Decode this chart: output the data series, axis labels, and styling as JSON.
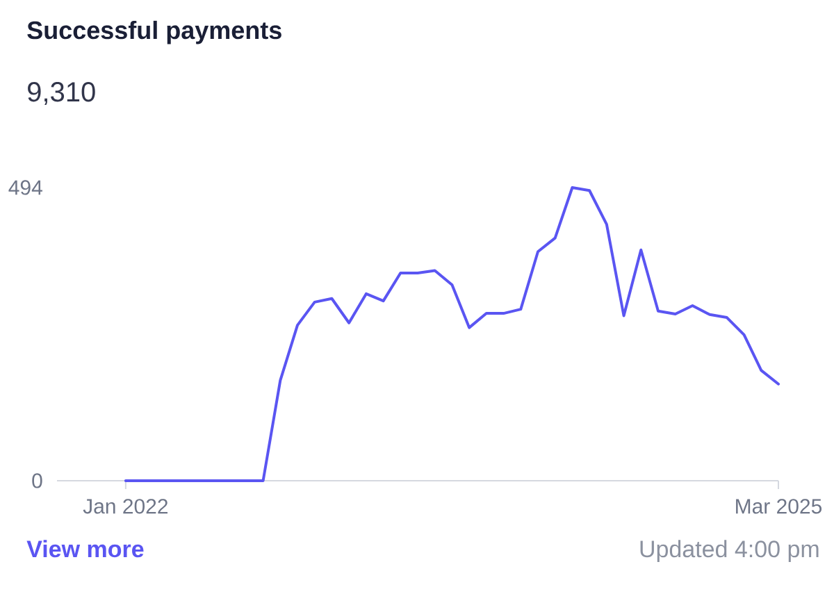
{
  "chart_data": {
    "type": "line",
    "title": "Successful payments",
    "subtitle": "9,310",
    "x": [
      "2022-01",
      "2022-02",
      "2022-03",
      "2022-04",
      "2022-05",
      "2022-06",
      "2022-07",
      "2022-08",
      "2022-09",
      "2022-10",
      "2022-11",
      "2022-12",
      "2023-01",
      "2023-02",
      "2023-03",
      "2023-04",
      "2023-05",
      "2023-06",
      "2023-07",
      "2023-08",
      "2023-09",
      "2023-10",
      "2023-11",
      "2023-12",
      "2024-01",
      "2024-02",
      "2024-03",
      "2024-04",
      "2024-05",
      "2024-06",
      "2024-07",
      "2024-08",
      "2024-09",
      "2024-10",
      "2024-11",
      "2024-12",
      "2025-01",
      "2025-02",
      "2025-03"
    ],
    "series": [
      {
        "color": "#5a55f2",
        "values": [
          0,
          0,
          0,
          0,
          0,
          0,
          0,
          0,
          0,
          169,
          262,
          301,
          307,
          266,
          315,
          303,
          350,
          350,
          354,
          330,
          258,
          282,
          282,
          289,
          386,
          409,
          494,
          489,
          432,
          278,
          389,
          286,
          281,
          295,
          280,
          275,
          246,
          186,
          163
        ]
      }
    ],
    "xlim": [
      "2021-09",
      "2025-03"
    ],
    "ylim": [
      0,
      494
    ],
    "xticks": [
      {
        "value": "2022-01",
        "label": "Jan 2022"
      },
      {
        "value": "2025-03",
        "label": "Mar 2025"
      }
    ],
    "yticks": [
      0,
      494
    ],
    "annotations": [
      "View more",
      "Updated 4:00 pm"
    ]
  }
}
